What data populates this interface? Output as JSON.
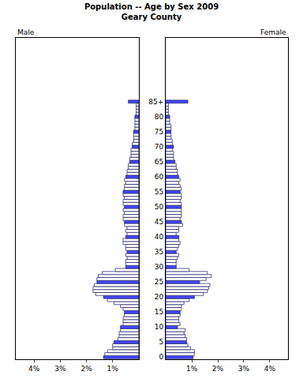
{
  "chart_data": {
    "type": "bar",
    "title": "Population -- Age by Sex 2009",
    "subtitle": "Geary County",
    "orientation": "horizontal",
    "grid": false,
    "categories": [
      "0",
      null,
      null,
      null,
      null,
      "5",
      null,
      null,
      null,
      null,
      "10",
      null,
      null,
      null,
      null,
      "15",
      null,
      null,
      null,
      null,
      "20",
      null,
      null,
      null,
      null,
      "25",
      null,
      null,
      null,
      null,
      "30",
      null,
      null,
      null,
      null,
      "35",
      null,
      null,
      null,
      null,
      "40",
      null,
      null,
      null,
      null,
      "45",
      null,
      null,
      null,
      null,
      "50",
      null,
      null,
      null,
      null,
      "55",
      null,
      null,
      null,
      null,
      "60",
      null,
      null,
      null,
      null,
      "65",
      null,
      null,
      null,
      null,
      "70",
      null,
      null,
      null,
      null,
      "75",
      null,
      null,
      null,
      null,
      "80",
      null,
      null,
      null,
      null,
      "85+"
    ],
    "xlim": [
      0,
      4.7
    ],
    "xticks": [
      {
        "value": 1,
        "label": "1%"
      },
      {
        "value": 2,
        "label": "2%"
      },
      {
        "value": 3,
        "label": "3%"
      },
      {
        "value": 4,
        "label": "4%"
      }
    ],
    "series": [
      {
        "name": "Male",
        "values": [
          1.35,
          1.3,
          1.2,
          1.0,
          1.0,
          0.95,
          0.8,
          0.75,
          0.75,
          0.7,
          0.7,
          0.6,
          0.6,
          0.6,
          0.55,
          0.55,
          0.6,
          0.7,
          0.95,
          1.2,
          1.35,
          1.65,
          1.75,
          1.75,
          1.7,
          1.6,
          1.6,
          1.55,
          1.4,
          0.9,
          0.5,
          0.5,
          0.5,
          0.45,
          0.5,
          0.45,
          0.5,
          0.5,
          0.6,
          0.6,
          0.5,
          0.45,
          0.5,
          0.45,
          0.55,
          0.55,
          0.6,
          0.6,
          0.55,
          0.6,
          0.55,
          0.6,
          0.6,
          0.55,
          0.6,
          0.6,
          0.55,
          0.55,
          0.5,
          0.55,
          0.5,
          0.45,
          0.45,
          0.4,
          0.4,
          0.35,
          0.35,
          0.3,
          0.3,
          0.3,
          0.25,
          0.25,
          0.2,
          0.2,
          0.2,
          0.2,
          0.15,
          0.15,
          0.15,
          0.15,
          0.15,
          0.1,
          0.1,
          0.1,
          0.1,
          0.4
        ],
        "colors": [
          "#4646ff",
          "#ffffff",
          "#ffffff",
          "#ffffff",
          "#ffffff",
          "#4646ff",
          "#ffffff",
          "#ffffff",
          "#ffffff",
          "#ffffff",
          "#4646ff",
          "#ffffff",
          "#ffffff",
          "#ffffff",
          "#ffffff",
          "#4646ff",
          "#ffffff",
          "#ffffff",
          "#ffffff",
          "#ffffff",
          "#4646ff",
          "#ffffff",
          "#ffffff",
          "#ffffff",
          "#ffffff",
          "#4646ff",
          "#ffffff",
          "#ffffff",
          "#ffffff",
          "#ffffff",
          "#4646ff",
          "#ffffff",
          "#ffffff",
          "#ffffff",
          "#ffffff",
          "#4646ff",
          "#ffffff",
          "#ffffff",
          "#ffffff",
          "#ffffff",
          "#4646ff",
          "#ffffff",
          "#ffffff",
          "#ffffff",
          "#ffffff",
          "#4646ff",
          "#ffffff",
          "#ffffff",
          "#ffffff",
          "#ffffff",
          "#4646ff",
          "#ffffff",
          "#ffffff",
          "#ffffff",
          "#ffffff",
          "#4646ff",
          "#ffffff",
          "#ffffff",
          "#ffffff",
          "#ffffff",
          "#4646ff",
          "#ffffff",
          "#ffffff",
          "#ffffff",
          "#ffffff",
          "#4646ff",
          "#ffffff",
          "#ffffff",
          "#ffffff",
          "#ffffff",
          "#4646ff",
          "#ffffff",
          "#ffffff",
          "#ffffff",
          "#ffffff",
          "#4646ff",
          "#ffffff",
          "#ffffff",
          "#ffffff",
          "#ffffff",
          "#4646ff",
          "#ffffff",
          "#ffffff",
          "#ffffff",
          "#ffffff",
          "#4646ff"
        ]
      },
      {
        "name": "Female",
        "values": [
          1.05,
          1.1,
          1.1,
          0.95,
          0.85,
          0.8,
          0.8,
          0.75,
          0.7,
          0.75,
          0.45,
          0.55,
          0.5,
          0.5,
          0.55,
          0.55,
          0.6,
          0.6,
          0.7,
          0.9,
          1.1,
          1.45,
          1.6,
          1.65,
          1.7,
          1.3,
          1.55,
          1.75,
          1.6,
          0.9,
          0.4,
          0.4,
          0.4,
          0.45,
          0.5,
          0.4,
          0.45,
          0.5,
          0.55,
          0.5,
          0.5,
          0.4,
          0.5,
          0.5,
          0.65,
          0.6,
          0.55,
          0.6,
          0.6,
          0.6,
          0.6,
          0.6,
          0.55,
          0.6,
          0.6,
          0.55,
          0.6,
          0.55,
          0.5,
          0.55,
          0.5,
          0.45,
          0.45,
          0.4,
          0.4,
          0.35,
          0.3,
          0.3,
          0.3,
          0.25,
          0.3,
          0.25,
          0.25,
          0.2,
          0.2,
          0.2,
          0.2,
          0.2,
          0.15,
          0.15,
          0.15,
          0.1,
          0.1,
          0.1,
          0.1,
          0.85
        ],
        "colors": [
          "#4646ff",
          "#ffffff",
          "#ffffff",
          "#ffffff",
          "#ffffff",
          "#4646ff",
          "#ffffff",
          "#ffffff",
          "#ffffff",
          "#ffffff",
          "#4646ff",
          "#ffffff",
          "#ffffff",
          "#ffffff",
          "#ffffff",
          "#4646ff",
          "#ffffff",
          "#ffffff",
          "#ffffff",
          "#ffffff",
          "#4646ff",
          "#ffffff",
          "#ffffff",
          "#ffffff",
          "#ffffff",
          "#4646ff",
          "#ffffff",
          "#ffffff",
          "#ffffff",
          "#ffffff",
          "#4646ff",
          "#ffffff",
          "#ffffff",
          "#ffffff",
          "#ffffff",
          "#4646ff",
          "#ffffff",
          "#ffffff",
          "#ffffff",
          "#ffffff",
          "#4646ff",
          "#ffffff",
          "#ffffff",
          "#ffffff",
          "#ffffff",
          "#4646ff",
          "#ffffff",
          "#ffffff",
          "#ffffff",
          "#ffffff",
          "#4646ff",
          "#ffffff",
          "#ffffff",
          "#ffffff",
          "#ffffff",
          "#4646ff",
          "#ffffff",
          "#ffffff",
          "#ffffff",
          "#ffffff",
          "#4646ff",
          "#ffffff",
          "#ffffff",
          "#ffffff",
          "#ffffff",
          "#4646ff",
          "#ffffff",
          "#ffffff",
          "#ffffff",
          "#ffffff",
          "#4646ff",
          "#ffffff",
          "#ffffff",
          "#ffffff",
          "#ffffff",
          "#4646ff",
          "#ffffff",
          "#ffffff",
          "#ffffff",
          "#ffffff",
          "#4646ff",
          "#ffffff",
          "#ffffff",
          "#ffffff",
          "#ffffff",
          "#4646ff"
        ]
      }
    ]
  }
}
